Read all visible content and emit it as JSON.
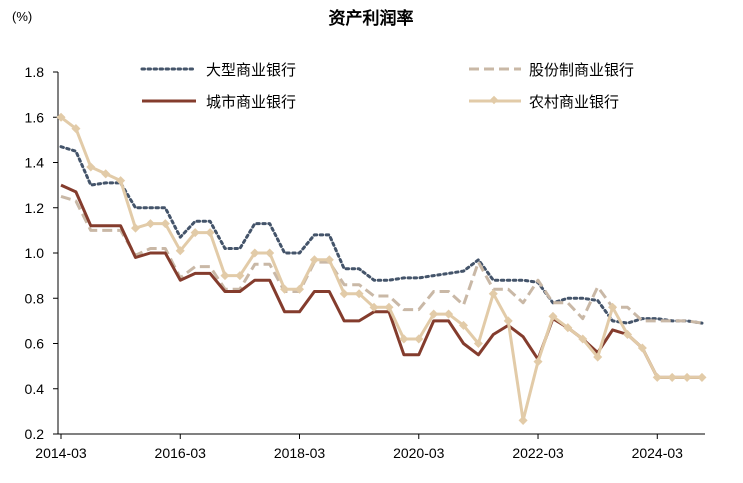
{
  "chart_data": {
    "type": "line",
    "title": "资产利润率",
    "unit_label": "(%)",
    "ylim": [
      0.2,
      1.8
    ],
    "yticks": [
      "0.2",
      "0.4",
      "0.6",
      "0.8",
      "1.0",
      "1.2",
      "1.4",
      "1.6",
      "1.8"
    ],
    "x": [
      "2014-03",
      "2014-06",
      "2014-09",
      "2014-12",
      "2015-03",
      "2015-06",
      "2015-09",
      "2015-12",
      "2016-03",
      "2016-06",
      "2016-09",
      "2016-12",
      "2017-03",
      "2017-06",
      "2017-09",
      "2017-12",
      "2018-03",
      "2018-06",
      "2018-09",
      "2018-12",
      "2019-03",
      "2019-06",
      "2019-09",
      "2019-12",
      "2020-03",
      "2020-06",
      "2020-09",
      "2020-12",
      "2021-03",
      "2021-06",
      "2021-09",
      "2021-12",
      "2022-03",
      "2022-06",
      "2022-09",
      "2022-12",
      "2023-03",
      "2023-06",
      "2023-09",
      "2023-12",
      "2024-03",
      "2024-06",
      "2024-09",
      "2024-12"
    ],
    "xtick_labels": [
      "2014-03",
      "2016-03",
      "2018-03",
      "2020-03",
      "2022-03",
      "2024-03"
    ],
    "grid": false,
    "legend_position": "top",
    "series": [
      {
        "name": "大型商业银行",
        "style": "dotted",
        "color": "#44546a",
        "values": [
          1.47,
          1.45,
          1.3,
          1.31,
          1.31,
          1.2,
          1.2,
          1.2,
          1.07,
          1.14,
          1.14,
          1.02,
          1.02,
          1.13,
          1.13,
          1.0,
          1.0,
          1.08,
          1.08,
          0.93,
          0.93,
          0.88,
          0.88,
          0.89,
          0.89,
          0.9,
          0.91,
          0.92,
          0.97,
          0.88,
          0.88,
          0.88,
          0.87,
          0.78,
          0.8,
          0.8,
          0.79,
          0.7,
          0.69,
          0.71,
          0.71,
          0.7,
          0.7,
          0.69
        ]
      },
      {
        "name": "股份制商业银行",
        "style": "dashed",
        "color": "#c9b8a6",
        "values": [
          1.25,
          1.23,
          1.1,
          1.1,
          1.1,
          0.99,
          1.02,
          1.02,
          0.89,
          0.94,
          0.94,
          0.84,
          0.84,
          0.95,
          0.95,
          0.83,
          0.83,
          0.96,
          0.96,
          0.86,
          0.86,
          0.81,
          0.81,
          0.75,
          0.75,
          0.83,
          0.83,
          0.77,
          0.96,
          0.84,
          0.84,
          0.78,
          0.88,
          0.78,
          0.78,
          0.71,
          0.85,
          0.76,
          0.76,
          0.7,
          0.7,
          0.7,
          0.7,
          0.69
        ]
      },
      {
        "name": "城市商业银行",
        "style": "solid",
        "color": "#843c2d",
        "values": [
          1.3,
          1.27,
          1.12,
          1.12,
          1.12,
          0.98,
          1.0,
          1.0,
          0.88,
          0.91,
          0.91,
          0.83,
          0.83,
          0.88,
          0.88,
          0.74,
          0.74,
          0.83,
          0.83,
          0.7,
          0.7,
          0.74,
          0.74,
          0.55,
          0.55,
          0.7,
          0.7,
          0.6,
          0.55,
          0.64,
          0.68,
          0.63,
          0.53,
          0.71,
          0.67,
          0.62,
          0.56,
          0.66,
          0.64,
          0.58,
          0.45,
          0.45,
          0.45,
          0.45
        ]
      },
      {
        "name": "农村商业银行",
        "style": "solid-diamond",
        "color": "#e2cba8",
        "values": [
          1.6,
          1.55,
          1.38,
          1.35,
          1.32,
          1.11,
          1.13,
          1.13,
          1.01,
          1.09,
          1.09,
          0.9,
          0.9,
          1.0,
          1.0,
          0.84,
          0.84,
          0.97,
          0.97,
          0.82,
          0.82,
          0.76,
          0.76,
          0.62,
          0.62,
          0.73,
          0.73,
          0.68,
          0.6,
          0.82,
          0.7,
          0.26,
          0.52,
          0.72,
          0.67,
          0.62,
          0.54,
          0.76,
          0.64,
          0.58,
          0.45,
          0.45,
          0.45,
          0.45
        ]
      }
    ]
  }
}
